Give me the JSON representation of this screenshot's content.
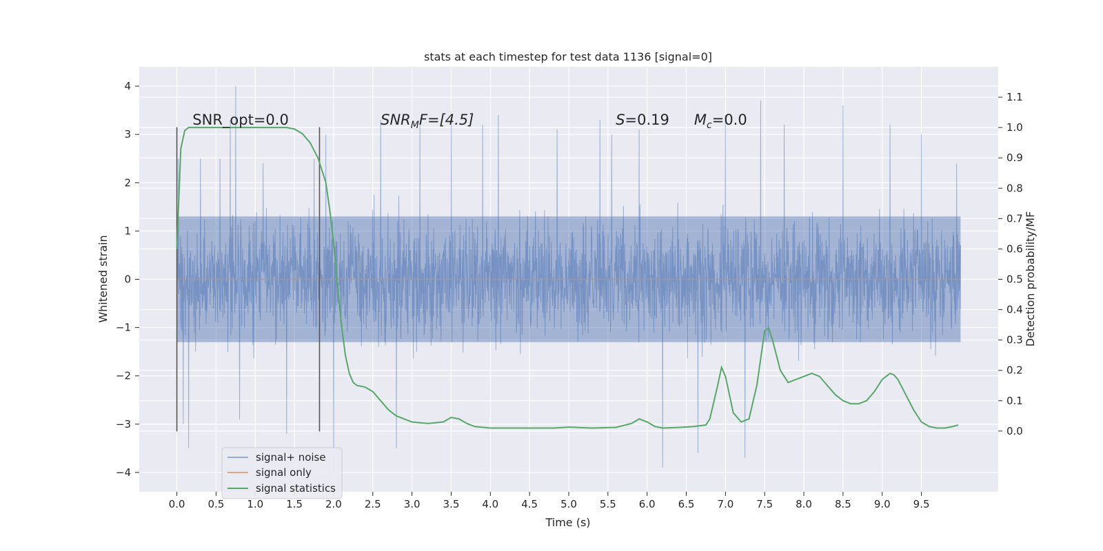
{
  "chart_data": {
    "type": "line",
    "title": "stats at each timestep for test data 1136 [signal=0]",
    "xlabel": "Time (s)",
    "ylabel": "Whitened strain",
    "y2label": "Detection probability/MF",
    "xlim": [
      -0.48,
      10.48
    ],
    "ylim": [
      -4.4,
      4.4
    ],
    "y2lim": [
      -0.2,
      1.2
    ],
    "xticks": [
      0.0,
      0.5,
      1.0,
      1.5,
      2.0,
      2.5,
      3.0,
      3.5,
      4.0,
      4.5,
      5.0,
      5.5,
      6.0,
      6.5,
      7.0,
      7.5,
      8.0,
      8.5,
      9.0,
      9.5
    ],
    "yticks": [
      -4,
      -3,
      -2,
      -1,
      0,
      1,
      2,
      3,
      4
    ],
    "y2ticks": [
      0.0,
      0.1,
      0.2,
      0.3,
      0.4,
      0.5,
      0.6,
      0.7,
      0.8,
      0.9,
      1.0,
      1.1
    ],
    "grid": true,
    "legend_position": "lower-left",
    "colors": {
      "noise": "#4c72b0",
      "signal": "#dd8452",
      "stats": "#55a868",
      "vline": "#555555"
    },
    "series": [
      {
        "name": "signal+ noise",
        "axis": "left",
        "x_range": [
          0.0,
          10.0
        ],
        "approx_envelope": [
          -1.3,
          1.3
        ],
        "peaks": [
          [
            0.02,
            2.5
          ],
          [
            0.08,
            -3.0
          ],
          [
            0.15,
            -3.5
          ],
          [
            0.3,
            2.5
          ],
          [
            0.55,
            2.5
          ],
          [
            0.68,
            3.3
          ],
          [
            0.75,
            4.0
          ],
          [
            0.8,
            -2.9
          ],
          [
            1.1,
            2.4
          ],
          [
            1.4,
            -3.2
          ],
          [
            1.75,
            2.5
          ],
          [
            1.9,
            3.0
          ],
          [
            2.0,
            -4.0
          ],
          [
            2.6,
            3.3
          ],
          [
            2.8,
            -3.5
          ],
          [
            3.1,
            3.2
          ],
          [
            3.5,
            3.2
          ],
          [
            3.9,
            3.2
          ],
          [
            4.1,
            3.4
          ],
          [
            4.85,
            3.1
          ],
          [
            5.4,
            3.3
          ],
          [
            5.55,
            3.0
          ],
          [
            5.9,
            3.1
          ],
          [
            6.2,
            -3.9
          ],
          [
            6.65,
            -3.6
          ],
          [
            7.0,
            3.4
          ],
          [
            7.25,
            -3.7
          ],
          [
            7.45,
            3.7
          ],
          [
            7.75,
            3.2
          ],
          [
            8.5,
            3.6
          ],
          [
            9.1,
            3.2
          ],
          [
            9.5,
            3.0
          ],
          [
            9.95,
            2.4
          ]
        ]
      },
      {
        "name": "signal only",
        "axis": "left",
        "x": [
          0.0,
          10.0
        ],
        "y": [
          0.0,
          0.0
        ]
      },
      {
        "name": "signal statistics",
        "axis": "right",
        "x": [
          0.0,
          0.05,
          0.1,
          0.15,
          0.2,
          0.4,
          0.8,
          1.2,
          1.4,
          1.5,
          1.6,
          1.7,
          1.8,
          1.9,
          1.95,
          2.0,
          2.05,
          2.1,
          2.15,
          2.2,
          2.25,
          2.3,
          2.4,
          2.5,
          2.6,
          2.7,
          2.8,
          3.0,
          3.2,
          3.4,
          3.5,
          3.6,
          3.7,
          3.8,
          4.0,
          4.5,
          4.8,
          5.0,
          5.3,
          5.6,
          5.8,
          5.9,
          6.0,
          6.1,
          6.2,
          6.4,
          6.6,
          6.75,
          6.8,
          6.9,
          6.95,
          7.0,
          7.05,
          7.1,
          7.2,
          7.3,
          7.4,
          7.5,
          7.55,
          7.6,
          7.65,
          7.7,
          7.8,
          7.9,
          8.0,
          8.1,
          8.2,
          8.3,
          8.4,
          8.5,
          8.6,
          8.7,
          8.8,
          8.9,
          9.0,
          9.1,
          9.15,
          9.2,
          9.3,
          9.4,
          9.5,
          9.6,
          9.7,
          9.8,
          9.9,
          9.97
        ],
        "y": [
          0.6,
          0.93,
          0.99,
          1.0,
          1.0,
          1.0,
          1.0,
          1.0,
          1.0,
          0.995,
          0.98,
          0.95,
          0.9,
          0.82,
          0.73,
          0.62,
          0.48,
          0.35,
          0.25,
          0.19,
          0.16,
          0.15,
          0.145,
          0.13,
          0.1,
          0.07,
          0.05,
          0.03,
          0.025,
          0.03,
          0.045,
          0.04,
          0.025,
          0.015,
          0.01,
          0.01,
          0.01,
          0.013,
          0.01,
          0.012,
          0.025,
          0.04,
          0.03,
          0.015,
          0.01,
          0.012,
          0.015,
          0.02,
          0.04,
          0.15,
          0.21,
          0.18,
          0.12,
          0.06,
          0.03,
          0.04,
          0.15,
          0.33,
          0.34,
          0.3,
          0.25,
          0.2,
          0.16,
          0.17,
          0.18,
          0.19,
          0.18,
          0.15,
          0.12,
          0.1,
          0.09,
          0.09,
          0.1,
          0.13,
          0.17,
          0.19,
          0.185,
          0.17,
          0.12,
          0.07,
          0.03,
          0.015,
          0.01,
          0.01,
          0.015,
          0.02
        ]
      }
    ],
    "vlines": [
      0.0,
      1.82
    ],
    "vline_range": [
      -3.15,
      3.15
    ],
    "annotations": [
      {
        "x": 0.2,
        "y": 3.2,
        "text": "SNR_opt=0.0"
      },
      {
        "x": 2.6,
        "y": 3.2,
        "text": "SNR_MF=[4.5]",
        "parts": [
          "SNR",
          "M",
          "F=[4.5]"
        ]
      },
      {
        "x": 5.6,
        "y": 3.2,
        "text": "S=0.19",
        "parts": [
          "S",
          "=0.19"
        ]
      },
      {
        "x": 6.6,
        "y": 3.2,
        "text": "M_c=0.0",
        "parts": [
          "M",
          "c",
          "=0.0"
        ]
      }
    ]
  }
}
